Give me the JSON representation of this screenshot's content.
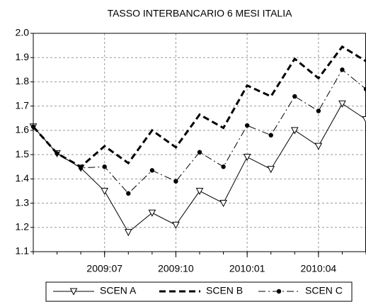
{
  "chart_data": {
    "type": "line",
    "title": "TASSO INTERBANCARIO 6 MESI ITALIA",
    "categories": [
      null,
      null,
      null,
      "2009:07",
      null,
      null,
      "2009:10",
      null,
      null,
      "2010:01",
      null,
      null,
      "2010:04",
      null,
      null
    ],
    "series": [
      {
        "name": "SCEN A",
        "color": "#000000",
        "dash": "solid",
        "width": 1,
        "marker": "triangle-down",
        "values": [
          1.615,
          1.505,
          1.445,
          1.35,
          1.18,
          1.26,
          1.21,
          1.35,
          1.3,
          1.49,
          1.44,
          1.6,
          1.535,
          1.71,
          1.645
        ]
      },
      {
        "name": "SCEN B",
        "color": "#000000",
        "dash": "dashed",
        "width": 3,
        "marker": "none",
        "values": [
          1.615,
          1.505,
          1.45,
          1.535,
          1.465,
          1.6,
          1.53,
          1.665,
          1.61,
          1.785,
          1.74,
          1.895,
          1.815,
          1.945,
          1.885
        ]
      },
      {
        "name": "SCEN C",
        "color": "#000000",
        "dash": "dashdot",
        "width": 1,
        "marker": "circle",
        "values": [
          1.615,
          1.505,
          1.445,
          1.45,
          1.34,
          1.435,
          1.39,
          1.51,
          1.45,
          1.62,
          1.58,
          1.74,
          1.68,
          1.85,
          1.77
        ]
      }
    ],
    "ylim": [
      1.1,
      2.0
    ],
    "yticks": [
      1.1,
      1.2,
      1.3,
      1.4,
      1.5,
      1.6,
      1.7,
      1.8,
      1.9,
      {
        "value": 2.0,
        "label": "2.0"
      }
    ],
    "grid": true
  }
}
